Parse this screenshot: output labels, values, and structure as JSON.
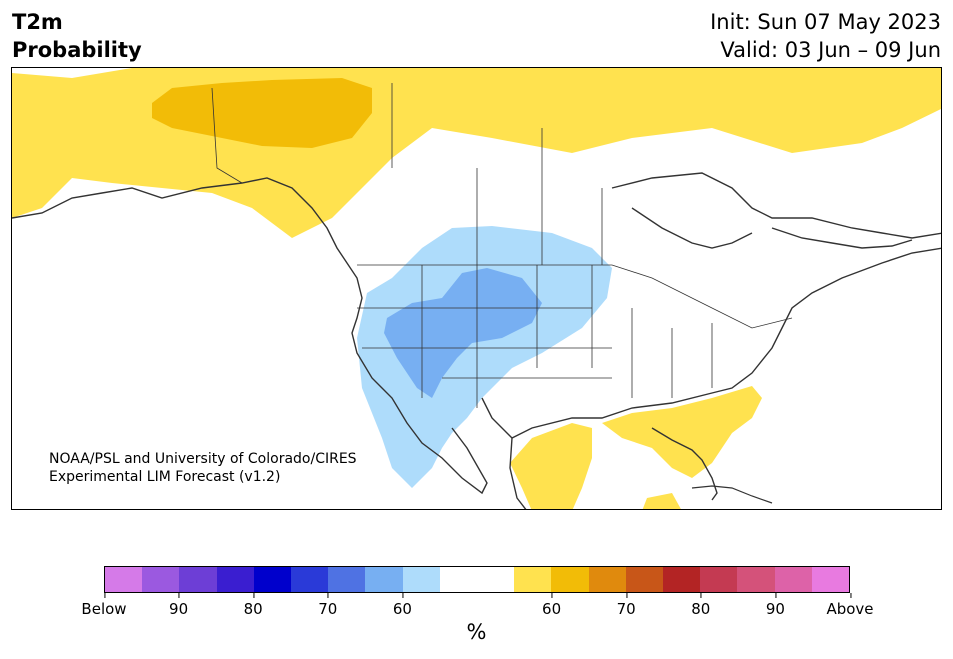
{
  "title": {
    "left_line1": "T2m",
    "left_line2": "Probability",
    "init": "Init: Sun 07 May 2023",
    "valid": "Valid: 03 Jun – 09 Jun"
  },
  "credit": {
    "line1": "NOAA/PSL and University of Colorado/CIRES",
    "line2": "Experimental LIM Forecast (v1.2)"
  },
  "colorbar": {
    "colors": [
      "#d57ae8",
      "#9b59e0",
      "#6d3ed6",
      "#3a1ed0",
      "#0000cc",
      "#2a3ad8",
      "#4f72e3",
      "#77aff2",
      "#aedcfb",
      "#ffffff",
      "#ffffff",
      "#ffe24f",
      "#f2bc07",
      "#e08a0d",
      "#c85618",
      "#b32424",
      "#c43a52",
      "#d4527a",
      "#dd62a8",
      "#e87ae0"
    ],
    "ticks": [
      "Below",
      "90",
      "80",
      "70",
      "60",
      "60",
      "70",
      "80",
      "90",
      "Above"
    ],
    "unit": "%"
  },
  "map": {
    "land_color": "#ffffff",
    "coast_color": "#333333",
    "regions": [
      {
        "name": "north-above",
        "category": "above-50-60",
        "color": "#ffe24f"
      },
      {
        "name": "yukon-above",
        "category": "above-60-70",
        "color": "#f2bc07"
      },
      {
        "name": "west-below",
        "category": "below-50-60",
        "color": "#aedcfb"
      },
      {
        "name": "great-basin-below",
        "category": "below-60-70",
        "color": "#77aff2"
      },
      {
        "name": "mexico-above",
        "category": "above-50-60",
        "color": "#ffe24f"
      },
      {
        "name": "southeast-above",
        "category": "above-50-60",
        "color": "#ffe24f"
      }
    ]
  }
}
